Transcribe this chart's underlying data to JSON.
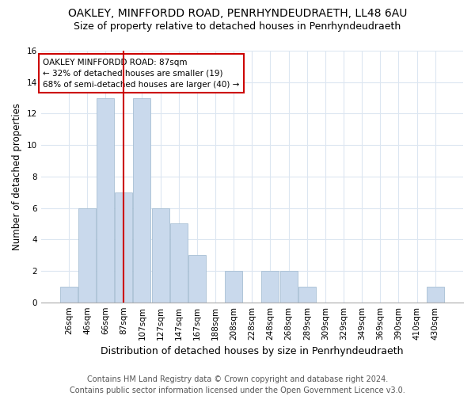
{
  "title1": "OAKLEY, MINFFORDD ROAD, PENRHYNDEUDRAETH, LL48 6AU",
  "title2": "Size of property relative to detached houses in Penrhyndeudraeth",
  "xlabel": "Distribution of detached houses by size in Penrhyndeudraeth",
  "ylabel": "Number of detached properties",
  "bins": [
    "26sqm",
    "46sqm",
    "66sqm",
    "87sqm",
    "107sqm",
    "127sqm",
    "147sqm",
    "167sqm",
    "188sqm",
    "208sqm",
    "228sqm",
    "248sqm",
    "268sqm",
    "289sqm",
    "309sqm",
    "329sqm",
    "349sqm",
    "369sqm",
    "390sqm",
    "410sqm",
    "430sqm"
  ],
  "values": [
    1,
    6,
    13,
    7,
    13,
    6,
    5,
    3,
    0,
    2,
    0,
    2,
    2,
    1,
    0,
    0,
    0,
    0,
    0,
    0,
    1
  ],
  "bar_color": "#c9d9ec",
  "bar_edge_color": "#a8bfd4",
  "vline_x_index": 3,
  "vline_color": "#cc0000",
  "annotation_text": "OAKLEY MINFFORDD ROAD: 87sqm\n← 32% of detached houses are smaller (19)\n68% of semi-detached houses are larger (40) →",
  "annotation_box_color": "#cc0000",
  "ylim": [
    0,
    16
  ],
  "yticks": [
    0,
    2,
    4,
    6,
    8,
    10,
    12,
    14,
    16
  ],
  "footer1": "Contains HM Land Registry data © Crown copyright and database right 2024.",
  "footer2": "Contains public sector information licensed under the Open Government Licence v3.0.",
  "bg_color": "#ffffff",
  "grid_color": "#dce6f1",
  "title1_fontsize": 10,
  "title2_fontsize": 9,
  "xlabel_fontsize": 9,
  "ylabel_fontsize": 8.5,
  "tick_fontsize": 7.5,
  "footer_fontsize": 7
}
